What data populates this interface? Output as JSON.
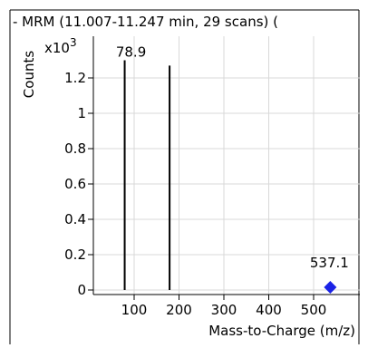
{
  "chart_data": {
    "type": "bar",
    "title": "- MRM (11.007-11.247 min, 29 scans) (",
    "xlabel": "Mass-to-Charge (m/z)",
    "ylabel": "Counts",
    "y_multiplier": "x10",
    "y_multiplier_exponent": "3",
    "xlim": [
      0,
      600
    ],
    "ylim": [
      0,
      1.35
    ],
    "x_ticks": [
      100,
      200,
      300,
      400,
      500
    ],
    "y_ticks": [
      0,
      0.2,
      0.4,
      0.6,
      0.8,
      1,
      1.2
    ],
    "x_tick_labels": [
      "100",
      "200",
      "300",
      "400",
      "500"
    ],
    "y_tick_labels": [
      "0",
      "0.2",
      "0.4",
      "0.6",
      "0.8",
      "1",
      "1.2"
    ],
    "grid": true,
    "series": [
      {
        "x": [
          78.9,
          179.0
        ],
        "y": [
          1.3,
          1.27
        ]
      }
    ],
    "annotations": [
      {
        "label": "78.9",
        "x": 78.9,
        "y": 1.3
      },
      {
        "label": "537.1",
        "x": 537.1,
        "y": 0.0,
        "marker": "diamond"
      }
    ],
    "colors": {
      "lines": "#000000",
      "marker": "#1a22e6",
      "grid": "#d9d9d9",
      "frame": "#000000"
    }
  }
}
